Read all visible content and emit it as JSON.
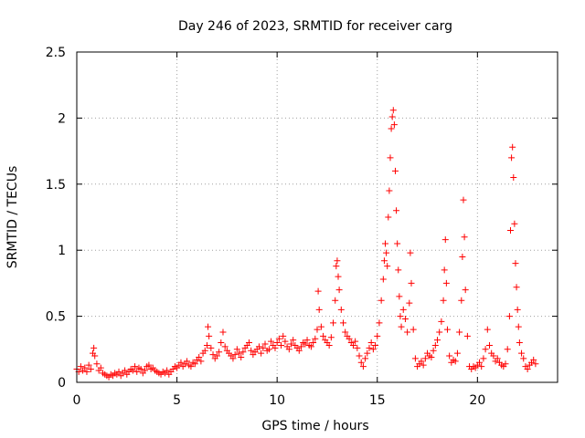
{
  "chart_data": {
    "type": "scatter",
    "title": "Day 246 of 2023, SRMTID for receiver carg",
    "xlabel": "GPS time / hours",
    "ylabel": "SRMTID / TECUs",
    "xlim": [
      0,
      24
    ],
    "ylim": [
      0,
      2.5
    ],
    "grid": true,
    "marker": "+",
    "x_ticks": [
      0,
      5,
      10,
      15,
      20
    ],
    "x_tick_labels": [
      "0",
      "5",
      "10",
      "15",
      "20"
    ],
    "y_ticks": [
      0,
      0.5,
      1,
      1.5,
      2,
      2.5
    ],
    "y_tick_labels": [
      "0",
      "0.5",
      "1",
      "1.5",
      "2",
      "2.5"
    ],
    "series": [
      {
        "name": "SRMTID",
        "color": "#ff0000",
        "points": [
          [
            0.0,
            0.1
          ],
          [
            0.1,
            0.08
          ],
          [
            0.2,
            0.12
          ],
          [
            0.3,
            0.09
          ],
          [
            0.4,
            0.11
          ],
          [
            0.5,
            0.08
          ],
          [
            0.6,
            0.13
          ],
          [
            0.7,
            0.1
          ],
          [
            0.8,
            0.22
          ],
          [
            0.85,
            0.26
          ],
          [
            0.9,
            0.2
          ],
          [
            1.0,
            0.14
          ],
          [
            1.1,
            0.09
          ],
          [
            1.2,
            0.11
          ],
          [
            1.3,
            0.07
          ],
          [
            1.4,
            0.06
          ],
          [
            1.5,
            0.05
          ],
          [
            1.6,
            0.04
          ],
          [
            1.7,
            0.06
          ],
          [
            1.8,
            0.05
          ],
          [
            1.9,
            0.07
          ],
          [
            2.0,
            0.06
          ],
          [
            2.1,
            0.08
          ],
          [
            2.2,
            0.05
          ],
          [
            2.3,
            0.07
          ],
          [
            2.4,
            0.09
          ],
          [
            2.5,
            0.06
          ],
          [
            2.6,
            0.08
          ],
          [
            2.7,
            0.1
          ],
          [
            2.8,
            0.09
          ],
          [
            2.9,
            0.12
          ],
          [
            3.0,
            0.08
          ],
          [
            3.1,
            0.11
          ],
          [
            3.2,
            0.1
          ],
          [
            3.3,
            0.07
          ],
          [
            3.4,
            0.09
          ],
          [
            3.5,
            0.12
          ],
          [
            3.6,
            0.13
          ],
          [
            3.7,
            0.1
          ],
          [
            3.8,
            0.11
          ],
          [
            3.9,
            0.09
          ],
          [
            4.0,
            0.08
          ],
          [
            4.1,
            0.07
          ],
          [
            4.2,
            0.06
          ],
          [
            4.3,
            0.08
          ],
          [
            4.4,
            0.07
          ],
          [
            4.5,
            0.09
          ],
          [
            4.6,
            0.06
          ],
          [
            4.7,
            0.08
          ],
          [
            4.8,
            0.1
          ],
          [
            4.9,
            0.12
          ],
          [
            5.0,
            0.11
          ],
          [
            5.1,
            0.13
          ],
          [
            5.2,
            0.15
          ],
          [
            5.3,
            0.12
          ],
          [
            5.4,
            0.14
          ],
          [
            5.5,
            0.16
          ],
          [
            5.6,
            0.13
          ],
          [
            5.7,
            0.12
          ],
          [
            5.8,
            0.15
          ],
          [
            5.9,
            0.14
          ],
          [
            6.0,
            0.17
          ],
          [
            6.1,
            0.19
          ],
          [
            6.2,
            0.16
          ],
          [
            6.3,
            0.22
          ],
          [
            6.4,
            0.24
          ],
          [
            6.5,
            0.28
          ],
          [
            6.55,
            0.42
          ],
          [
            6.6,
            0.35
          ],
          [
            6.7,
            0.26
          ],
          [
            6.8,
            0.21
          ],
          [
            6.9,
            0.18
          ],
          [
            7.0,
            0.2
          ],
          [
            7.1,
            0.23
          ],
          [
            7.2,
            0.3
          ],
          [
            7.3,
            0.38
          ],
          [
            7.4,
            0.27
          ],
          [
            7.5,
            0.24
          ],
          [
            7.6,
            0.22
          ],
          [
            7.7,
            0.2
          ],
          [
            7.8,
            0.18
          ],
          [
            7.9,
            0.21
          ],
          [
            8.0,
            0.25
          ],
          [
            8.1,
            0.22
          ],
          [
            8.2,
            0.19
          ],
          [
            8.3,
            0.23
          ],
          [
            8.4,
            0.26
          ],
          [
            8.5,
            0.28
          ],
          [
            8.6,
            0.3
          ],
          [
            8.7,
            0.24
          ],
          [
            8.8,
            0.21
          ],
          [
            8.9,
            0.23
          ],
          [
            9.0,
            0.25
          ],
          [
            9.1,
            0.27
          ],
          [
            9.2,
            0.22
          ],
          [
            9.3,
            0.26
          ],
          [
            9.4,
            0.29
          ],
          [
            9.5,
            0.24
          ],
          [
            9.6,
            0.25
          ],
          [
            9.7,
            0.31
          ],
          [
            9.8,
            0.28
          ],
          [
            9.9,
            0.26
          ],
          [
            10.0,
            0.3
          ],
          [
            10.1,
            0.33
          ],
          [
            10.2,
            0.28
          ],
          [
            10.3,
            0.35
          ],
          [
            10.4,
            0.31
          ],
          [
            10.5,
            0.27
          ],
          [
            10.6,
            0.25
          ],
          [
            10.7,
            0.29
          ],
          [
            10.8,
            0.32
          ],
          [
            10.9,
            0.28
          ],
          [
            11.0,
            0.26
          ],
          [
            11.1,
            0.24
          ],
          [
            11.2,
            0.27
          ],
          [
            11.3,
            0.3
          ],
          [
            11.4,
            0.29
          ],
          [
            11.5,
            0.32
          ],
          [
            11.6,
            0.28
          ],
          [
            11.7,
            0.27
          ],
          [
            11.8,
            0.3
          ],
          [
            11.9,
            0.33
          ],
          [
            12.0,
            0.4
          ],
          [
            12.05,
            0.69
          ],
          [
            12.1,
            0.55
          ],
          [
            12.2,
            0.42
          ],
          [
            12.3,
            0.35
          ],
          [
            12.4,
            0.32
          ],
          [
            12.5,
            0.3
          ],
          [
            12.6,
            0.28
          ],
          [
            12.7,
            0.34
          ],
          [
            12.8,
            0.45
          ],
          [
            12.9,
            0.62
          ],
          [
            12.95,
            0.88
          ],
          [
            13.0,
            0.92
          ],
          [
            13.05,
            0.8
          ],
          [
            13.1,
            0.7
          ],
          [
            13.2,
            0.55
          ],
          [
            13.3,
            0.45
          ],
          [
            13.4,
            0.38
          ],
          [
            13.5,
            0.35
          ],
          [
            13.6,
            0.33
          ],
          [
            13.7,
            0.3
          ],
          [
            13.8,
            0.28
          ],
          [
            13.9,
            0.31
          ],
          [
            14.0,
            0.26
          ],
          [
            14.1,
            0.2
          ],
          [
            14.2,
            0.15
          ],
          [
            14.3,
            0.12
          ],
          [
            14.4,
            0.18
          ],
          [
            14.5,
            0.22
          ],
          [
            14.6,
            0.26
          ],
          [
            14.7,
            0.3
          ],
          [
            14.8,
            0.25
          ],
          [
            14.9,
            0.28
          ],
          [
            15.0,
            0.35
          ],
          [
            15.1,
            0.45
          ],
          [
            15.2,
            0.62
          ],
          [
            15.3,
            0.78
          ],
          [
            15.35,
            0.92
          ],
          [
            15.4,
            1.05
          ],
          [
            15.45,
            0.98
          ],
          [
            15.5,
            0.88
          ],
          [
            15.55,
            1.25
          ],
          [
            15.6,
            1.45
          ],
          [
            15.65,
            1.7
          ],
          [
            15.7,
            1.92
          ],
          [
            15.75,
            2.01
          ],
          [
            15.8,
            2.06
          ],
          [
            15.85,
            1.95
          ],
          [
            15.9,
            1.6
          ],
          [
            15.95,
            1.3
          ],
          [
            16.0,
            1.05
          ],
          [
            16.05,
            0.85
          ],
          [
            16.1,
            0.65
          ],
          [
            16.15,
            0.5
          ],
          [
            16.2,
            0.42
          ],
          [
            16.3,
            0.55
          ],
          [
            16.4,
            0.48
          ],
          [
            16.5,
            0.38
          ],
          [
            16.6,
            0.6
          ],
          [
            16.65,
            0.98
          ],
          [
            16.7,
            0.75
          ],
          [
            16.8,
            0.4
          ],
          [
            16.9,
            0.18
          ],
          [
            17.0,
            0.12
          ],
          [
            17.1,
            0.14
          ],
          [
            17.2,
            0.16
          ],
          [
            17.3,
            0.13
          ],
          [
            17.4,
            0.18
          ],
          [
            17.5,
            0.22
          ],
          [
            17.6,
            0.2
          ],
          [
            17.7,
            0.19
          ],
          [
            17.8,
            0.24
          ],
          [
            17.9,
            0.28
          ],
          [
            18.0,
            0.32
          ],
          [
            18.1,
            0.38
          ],
          [
            18.2,
            0.46
          ],
          [
            18.3,
            0.62
          ],
          [
            18.35,
            0.85
          ],
          [
            18.4,
            1.08
          ],
          [
            18.45,
            0.75
          ],
          [
            18.5,
            0.4
          ],
          [
            18.6,
            0.2
          ],
          [
            18.7,
            0.15
          ],
          [
            18.8,
            0.17
          ],
          [
            18.9,
            0.16
          ],
          [
            19.0,
            0.22
          ],
          [
            19.1,
            0.38
          ],
          [
            19.2,
            0.62
          ],
          [
            19.25,
            0.95
          ],
          [
            19.3,
            1.38
          ],
          [
            19.35,
            1.1
          ],
          [
            19.4,
            0.7
          ],
          [
            19.5,
            0.35
          ],
          [
            19.6,
            0.12
          ],
          [
            19.7,
            0.1
          ],
          [
            19.8,
            0.12
          ],
          [
            19.9,
            0.11
          ],
          [
            20.0,
            0.13
          ],
          [
            20.1,
            0.15
          ],
          [
            20.2,
            0.12
          ],
          [
            20.3,
            0.18
          ],
          [
            20.4,
            0.25
          ],
          [
            20.5,
            0.4
          ],
          [
            20.6,
            0.28
          ],
          [
            20.7,
            0.22
          ],
          [
            20.8,
            0.2
          ],
          [
            20.9,
            0.16
          ],
          [
            21.0,
            0.18
          ],
          [
            21.1,
            0.15
          ],
          [
            21.2,
            0.13
          ],
          [
            21.3,
            0.12
          ],
          [
            21.4,
            0.14
          ],
          [
            21.5,
            0.25
          ],
          [
            21.6,
            0.5
          ],
          [
            21.65,
            1.15
          ],
          [
            21.7,
            1.7
          ],
          [
            21.75,
            1.78
          ],
          [
            21.8,
            1.55
          ],
          [
            21.85,
            1.2
          ],
          [
            21.9,
            0.9
          ],
          [
            21.95,
            0.72
          ],
          [
            22.0,
            0.55
          ],
          [
            22.05,
            0.42
          ],
          [
            22.1,
            0.3
          ],
          [
            22.2,
            0.22
          ],
          [
            22.3,
            0.18
          ],
          [
            22.4,
            0.12
          ],
          [
            22.5,
            0.1
          ],
          [
            22.6,
            0.13
          ],
          [
            22.7,
            0.15
          ],
          [
            22.8,
            0.17
          ],
          [
            22.9,
            0.14
          ]
        ]
      }
    ]
  }
}
